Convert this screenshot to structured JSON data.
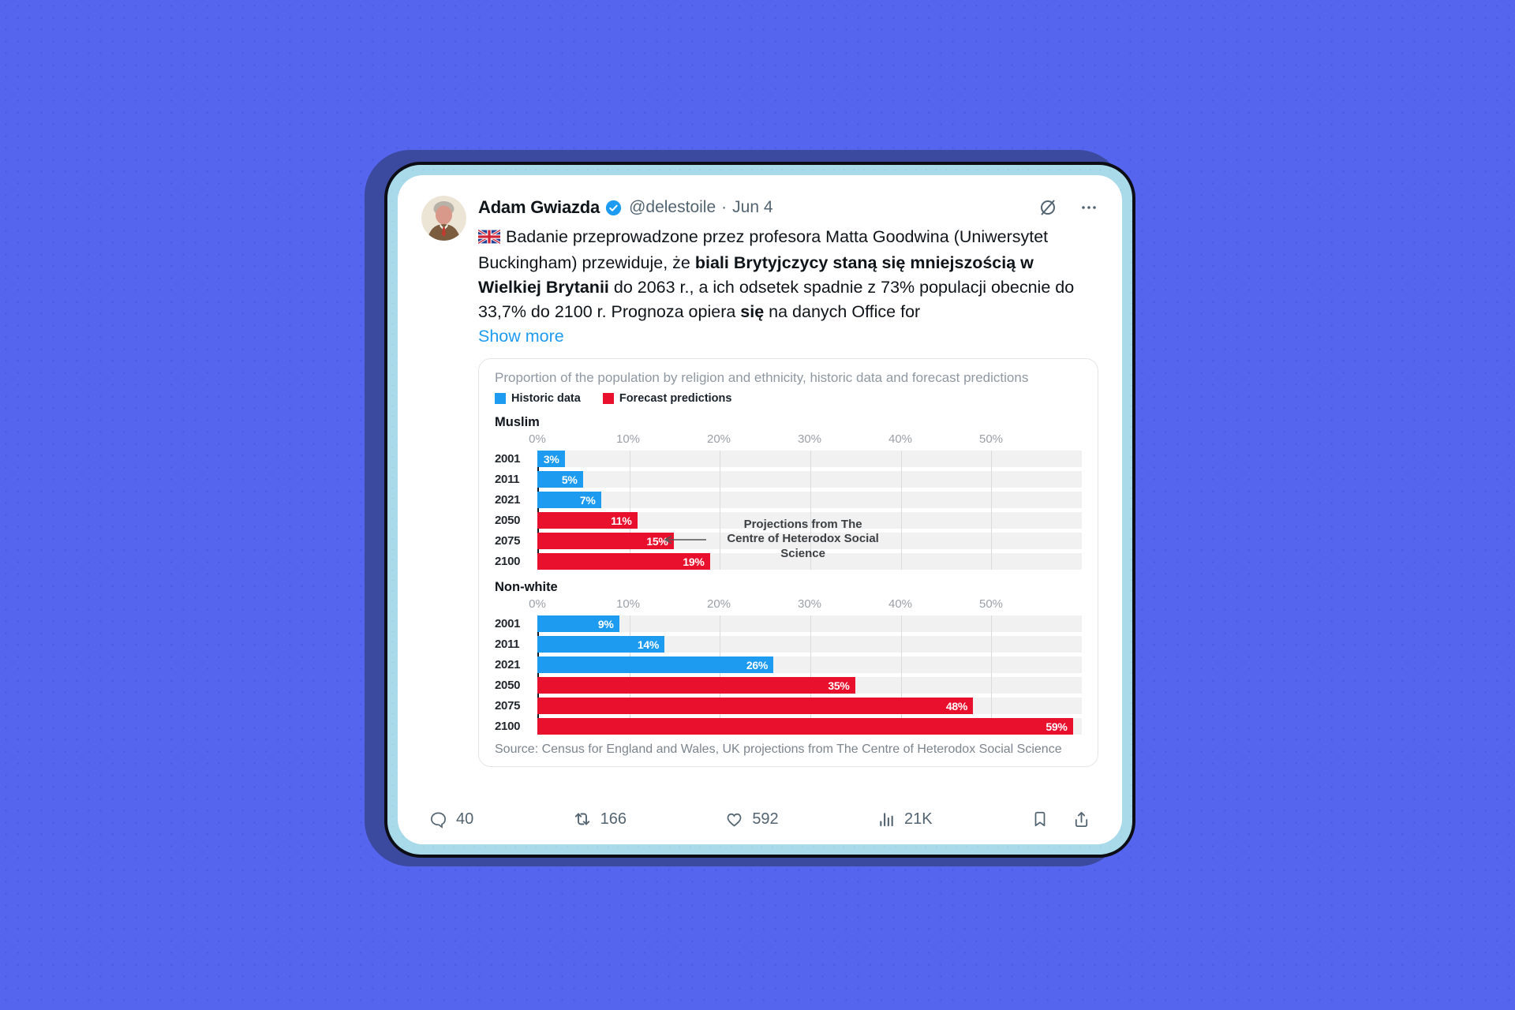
{
  "window": {
    "background": "#5565ed",
    "shadow_color": "#3b4a9e",
    "frame_color": "#a8dae9"
  },
  "tweet": {
    "author": "Adam Gwiazda",
    "verified": true,
    "handle": "@delestoile",
    "separator": "·",
    "date": "Jun 4",
    "text_segments": [
      {
        "text": "Badanie przeprowadzone przez profesora Matta Goodwina (Uniwersytet Buckingham) przewiduje, że ",
        "bold": false
      },
      {
        "text": "biali Brytyjczycy staną się mniejszością w Wielkiej Brytanii",
        "bold": true
      },
      {
        "text": " do 2063 r., a ich odsetek spadnie z 73% populacji obecnie do 33,7% do 2100 r. Prognoza opiera ",
        "bold": false
      },
      {
        "text": "się",
        "bold": true
      },
      {
        "text": " na danych Office for",
        "bold": false
      }
    ],
    "show_more_label": "Show more",
    "actions": {
      "reply_count": "40",
      "repost_count": "166",
      "like_count": "592",
      "view_count": "21K"
    }
  },
  "chart_data": {
    "type": "bar",
    "orientation": "horizontal",
    "title": "Proportion of the population by religion and ethnicity, historic data and forecast predictions",
    "legend": [
      {
        "key": "historic",
        "label": "Historic data",
        "color": "#1d9bf0"
      },
      {
        "key": "forecast",
        "label": "Forecast predictions",
        "color": "#e8102d"
      }
    ],
    "xlim": [
      0,
      60
    ],
    "grid": true,
    "ticks": [
      {
        "v": 0,
        "label": "0%"
      },
      {
        "v": 10,
        "label": "10%"
      },
      {
        "v": 20,
        "label": "20%"
      },
      {
        "v": 30,
        "label": "30%"
      },
      {
        "v": 40,
        "label": "40%"
      },
      {
        "v": 50,
        "label": "50%"
      }
    ],
    "sections": [
      {
        "name": "Muslim",
        "categories": [
          "2001",
          "2011",
          "2021",
          "2050",
          "2075",
          "2100"
        ],
        "values": [
          3,
          5,
          7,
          11,
          15,
          19
        ],
        "series": [
          "historic",
          "historic",
          "historic",
          "forecast",
          "forecast",
          "forecast"
        ],
        "labels": [
          "3%",
          "5%",
          "7%",
          "11%",
          "15%",
          "19%"
        ],
        "annotation": {
          "lines": [
            "Projections from The",
            "Centre of Heterodox Social",
            "Science"
          ],
          "points_to": "2075"
        }
      },
      {
        "name": "Non-white",
        "categories": [
          "2001",
          "2011",
          "2021",
          "2050",
          "2075",
          "2100"
        ],
        "values": [
          9,
          14,
          26,
          35,
          48,
          59
        ],
        "series": [
          "historic",
          "historic",
          "historic",
          "forecast",
          "forecast",
          "forecast"
        ],
        "labels": [
          "9%",
          "14%",
          "26%",
          "35%",
          "48%",
          "59%"
        ]
      }
    ],
    "source": "Source: Census for England and Wales, UK projections from The Centre of Heterodox Social Science"
  }
}
